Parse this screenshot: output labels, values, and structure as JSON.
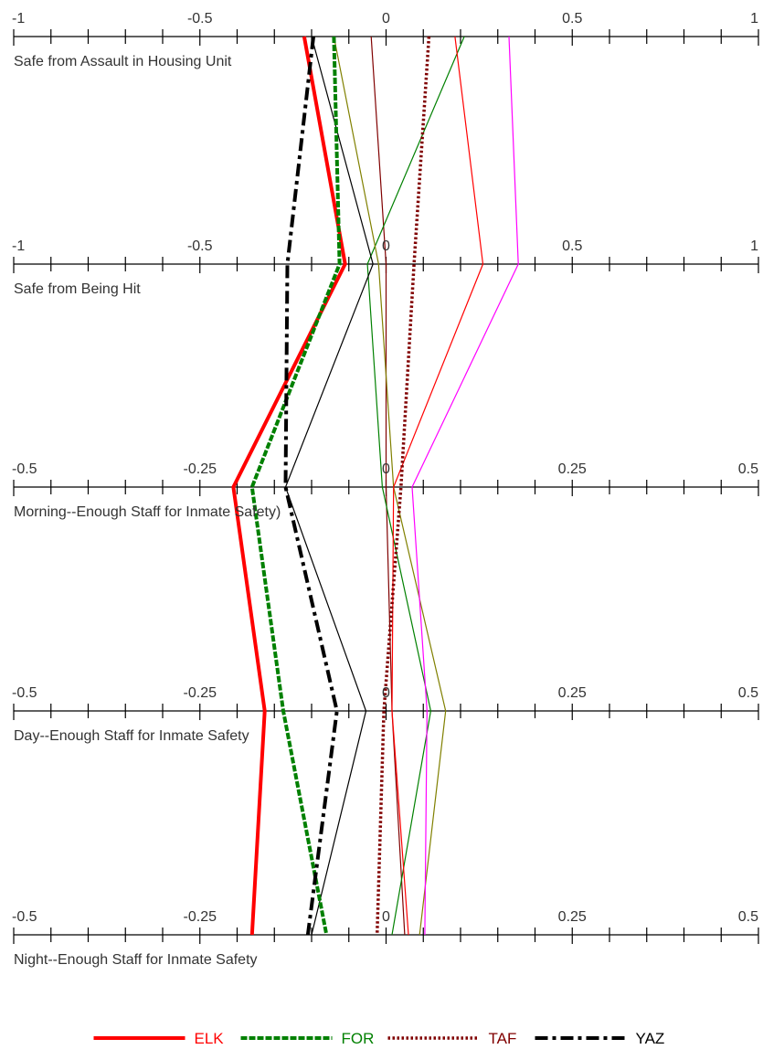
{
  "chart_data": {
    "type": "parallel-coordinates",
    "title": "",
    "axes": [
      {
        "name": "Safe from Assault in Housing Unit",
        "min": -1,
        "max": 1,
        "tick_labels": [
          "-1",
          "-0.5",
          "0",
          "0.5",
          "1"
        ]
      },
      {
        "name": "Safe from Being Hit",
        "min": -1,
        "max": 1,
        "tick_labels": [
          "-1",
          "-0.5",
          "0",
          "0.5",
          "1"
        ]
      },
      {
        "name": "Morning--Enough Staff for Inmate Safety)",
        "min": -0.5,
        "max": 0.5,
        "tick_labels": [
          "-0.5",
          "-0.25",
          "0",
          "0.25",
          "0.5"
        ]
      },
      {
        "name": "Day--Enough Staff for Inmate Safety",
        "min": -0.5,
        "max": 0.5,
        "tick_labels": [
          "-0.5",
          "-0.25",
          "0",
          "0.25",
          "0.5"
        ]
      },
      {
        "name": "Night--Enough Staff for Inmate Safety",
        "min": -0.5,
        "max": 0.5,
        "tick_labels": [
          "-0.5",
          "-0.25",
          "0",
          "0.25",
          "0.5"
        ]
      }
    ],
    "series": [
      {
        "name": "ELK",
        "color": "#ff0000",
        "style": "solid-thick",
        "legend": true,
        "values": [
          -0.22,
          -0.11,
          -0.205,
          -0.163,
          -0.18
        ]
      },
      {
        "name": "FOR",
        "color": "#008000",
        "style": "dashed-thick",
        "legend": true,
        "values": [
          -0.14,
          -0.125,
          -0.18,
          -0.138,
          -0.08
        ]
      },
      {
        "name": "TAF",
        "color": "#800000",
        "style": "dotted-thick",
        "legend": true,
        "values": [
          0.115,
          0.075,
          0.02,
          -0.003,
          -0.012
        ]
      },
      {
        "name": "YAZ",
        "color": "#000000",
        "style": "dashdot-thick",
        "legend": true,
        "values": [
          -0.195,
          -0.265,
          -0.135,
          -0.066,
          -0.105
        ]
      },
      {
        "name": "",
        "color": "#800000",
        "style": "solid-thin",
        "legend": false,
        "values": [
          -0.04,
          0.0,
          0.0,
          0.008,
          0.025
        ]
      },
      {
        "name": "",
        "color": "#008000",
        "style": "solid-thin",
        "legend": false,
        "values": [
          0.21,
          -0.05,
          -0.005,
          0.06,
          0.008
        ]
      },
      {
        "name": "",
        "color": "#808000",
        "style": "solid-thin",
        "legend": false,
        "values": [
          -0.14,
          -0.02,
          0.01,
          0.08,
          0.045
        ]
      },
      {
        "name": "",
        "color": "#000000",
        "style": "solid-thin",
        "legend": false,
        "values": [
          -0.2,
          -0.035,
          -0.135,
          -0.027,
          -0.1
        ]
      },
      {
        "name": "",
        "color": "#ff0000",
        "style": "solid-thin",
        "legend": false,
        "values": [
          0.185,
          0.26,
          0.01,
          0.008,
          0.03
        ]
      },
      {
        "name": "",
        "color": "#ff00ff",
        "style": "solid-thin",
        "legend": false,
        "values": [
          0.33,
          0.355,
          0.035,
          0.055,
          0.052
        ]
      }
    ],
    "legend": {
      "position": "bottom-center",
      "entries": [
        "ELK",
        "FOR",
        "TAF",
        "YAZ"
      ]
    },
    "grid": false
  }
}
